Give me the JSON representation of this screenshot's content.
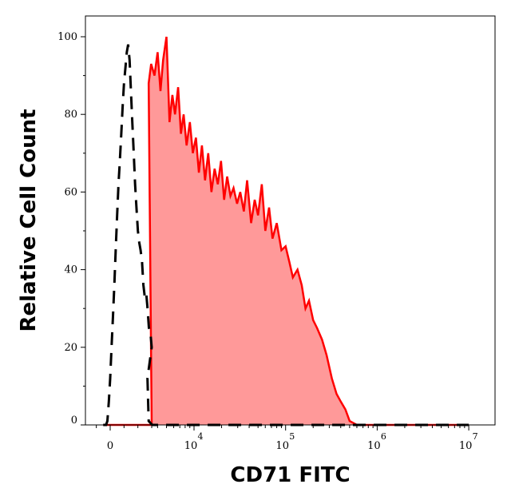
{
  "chart_data": {
    "type": "area",
    "xlabel": "CD71 FITC",
    "ylabel": "Relative Cell Count",
    "x_scale": "biexponential",
    "x_tick_labels": [
      {
        "value": 0,
        "label": "0",
        "exp": ""
      },
      {
        "value": 10000,
        "label": "10",
        "exp": "4"
      },
      {
        "value": 100000,
        "label": "10",
        "exp": "5"
      },
      {
        "value": 1000000,
        "label": "10",
        "exp": "6"
      },
      {
        "value": 10000000,
        "label": "10",
        "exp": "7"
      }
    ],
    "y_ticks": [
      0,
      20,
      40,
      60,
      80,
      100
    ],
    "ylim": [
      0,
      100
    ],
    "grid": false,
    "series": [
      {
        "style": "dashed",
        "color": "#000000",
        "x": [
          -500,
          -300,
          -200,
          -100,
          0,
          100,
          200,
          300,
          400,
          500,
          600,
          700,
          800,
          900,
          1000,
          1100,
          1200,
          1300,
          1400,
          1500,
          1600,
          1700,
          1800,
          1900,
          2000,
          2100,
          2200,
          2300,
          2400,
          2500,
          2600,
          2700,
          2800,
          2900,
          3000,
          3100,
          3200,
          3500,
          5000,
          10000,
          30000,
          100000,
          1000000,
          10000000
        ],
        "values": [
          0,
          0,
          1,
          6,
          12,
          20,
          28,
          36,
          45,
          54,
          62,
          68,
          75,
          82,
          88,
          92,
          96,
          98,
          94,
          86,
          78,
          70,
          62,
          56,
          50,
          47,
          45,
          42,
          36,
          33,
          34,
          30,
          25,
          24,
          20,
          12,
          1,
          0,
          0,
          0,
          0,
          0,
          0,
          0
        ]
      },
      {
        "style": "filled",
        "color": "#ff0000",
        "fill": "#ff9999",
        "x": [
          -500,
          3000,
          3200,
          3400,
          3700,
          4000,
          4300,
          4600,
          5000,
          5400,
          5800,
          6200,
          6700,
          7200,
          7700,
          8300,
          9000,
          9700,
          10500,
          11300,
          12200,
          13200,
          14300,
          15500,
          16800,
          18200,
          19700,
          21300,
          23000,
          25000,
          27000,
          29500,
          32000,
          35000,
          38000,
          42000,
          46000,
          50000,
          55000,
          60000,
          66000,
          72000,
          80000,
          90000,
          100000,
          110000,
          120000,
          135000,
          150000,
          165000,
          180000,
          200000,
          220000,
          250000,
          280000,
          320000,
          360000,
          400000,
          450000,
          500000,
          600000,
          1000000,
          10000000
        ],
        "values": [
          0,
          0,
          88,
          93,
          90,
          96,
          86,
          94,
          100,
          78,
          85,
          80,
          87,
          75,
          80,
          72,
          78,
          70,
          74,
          65,
          72,
          63,
          70,
          60,
          66,
          62,
          68,
          58,
          64,
          59,
          61,
          57,
          60,
          55,
          63,
          52,
          58,
          54,
          62,
          50,
          56,
          48,
          52,
          45,
          46,
          42,
          38,
          40,
          36,
          30,
          32,
          27,
          25,
          22,
          18,
          12,
          8,
          6,
          4,
          1,
          0,
          0,
          0
        ]
      }
    ]
  }
}
